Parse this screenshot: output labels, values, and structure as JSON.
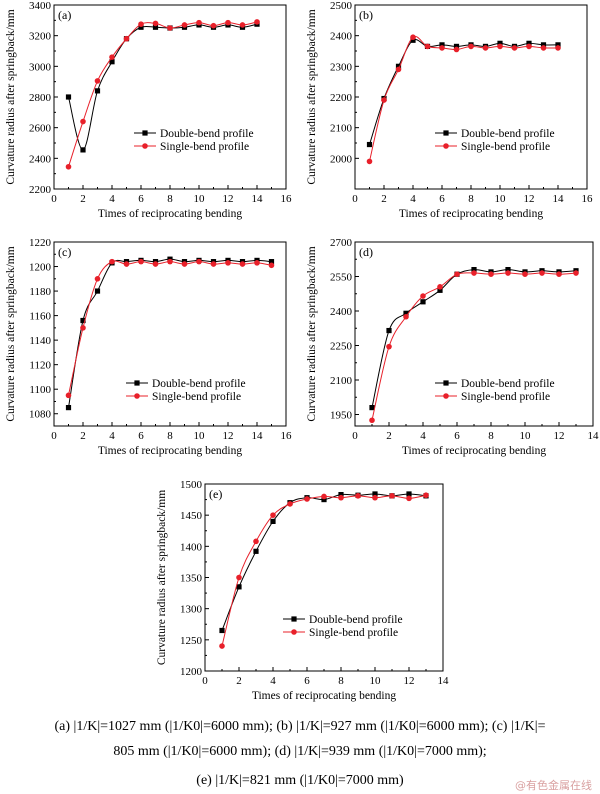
{
  "chart_data": [
    {
      "type": "line",
      "panel_label": "(a)",
      "xlabel": "Times of reciprocating bending",
      "ylabel": "Curvature radius after springback/mm",
      "xlim": [
        0,
        16
      ],
      "ylim": [
        2200,
        3400
      ],
      "xticks": [
        0,
        2,
        4,
        6,
        8,
        10,
        12,
        14,
        16
      ],
      "yticks": [
        2200,
        2400,
        2600,
        2800,
        3000,
        3200,
        3400
      ],
      "legend_position": "middle-right",
      "series": [
        {
          "name": "Double-bend profile",
          "marker": "square",
          "color": "#000000",
          "x": [
            1,
            2,
            3,
            4,
            5,
            6,
            7,
            8,
            9,
            10,
            11,
            12,
            13,
            14
          ],
          "y": [
            2800,
            2455,
            2840,
            3030,
            3180,
            3255,
            3255,
            3250,
            3255,
            3270,
            3255,
            3270,
            3255,
            3275
          ]
        },
        {
          "name": "Single-bend profile",
          "marker": "circle",
          "color": "#e8202a",
          "x": [
            1,
            2,
            3,
            4,
            5,
            6,
            7,
            8,
            9,
            10,
            11,
            12,
            13,
            14
          ],
          "y": [
            2345,
            2640,
            2905,
            3060,
            3180,
            3275,
            3280,
            3250,
            3270,
            3285,
            3265,
            3285,
            3270,
            3290
          ]
        }
      ]
    },
    {
      "type": "line",
      "panel_label": "(b)",
      "xlabel": "Times of reciprocating bending",
      "ylabel": "Curvature radius after springback/mm",
      "xlim": [
        0,
        16
      ],
      "ylim": [
        1900,
        2500
      ],
      "xticks": [
        0,
        2,
        4,
        6,
        8,
        10,
        12,
        14,
        16
      ],
      "yticks": [
        2000,
        2100,
        2200,
        2300,
        2400,
        2500
      ],
      "legend_position": "middle-right",
      "series": [
        {
          "name": "Double-bend profile",
          "marker": "square",
          "color": "#000000",
          "x": [
            1,
            2,
            3,
            4,
            5,
            6,
            7,
            8,
            9,
            10,
            11,
            12,
            13,
            14
          ],
          "y": [
            2045,
            2195,
            2300,
            2385,
            2365,
            2370,
            2365,
            2370,
            2365,
            2375,
            2365,
            2375,
            2370,
            2370
          ]
        },
        {
          "name": "Single-bend profile",
          "marker": "circle",
          "color": "#e8202a",
          "x": [
            1,
            2,
            3,
            4,
            5,
            6,
            7,
            8,
            9,
            10,
            11,
            12,
            13,
            14
          ],
          "y": [
            1990,
            2190,
            2290,
            2395,
            2365,
            2360,
            2355,
            2365,
            2360,
            2365,
            2360,
            2365,
            2360,
            2360
          ]
        }
      ]
    },
    {
      "type": "line",
      "panel_label": "(c)",
      "xlabel": "Times of reciprocating bending",
      "ylabel": "Curvature radius after springback/mm",
      "xlim": [
        0,
        16
      ],
      "ylim": [
        1070,
        1220
      ],
      "xticks": [
        0,
        2,
        4,
        6,
        8,
        10,
        12,
        14,
        16
      ],
      "yticks": [
        1080,
        1100,
        1120,
        1140,
        1160,
        1180,
        1200,
        1220
      ],
      "legend_position": "bottom-right",
      "series": [
        {
          "name": "Double-bend profile",
          "marker": "square",
          "color": "#000000",
          "x": [
            1,
            2,
            3,
            4,
            5,
            6,
            7,
            8,
            9,
            10,
            11,
            12,
            13,
            14,
            15
          ],
          "y": [
            1085,
            1156,
            1180,
            1203,
            1204,
            1205,
            1204,
            1206,
            1204,
            1205,
            1204,
            1205,
            1204,
            1205,
            1204
          ]
        },
        {
          "name": "Single-bend profile",
          "marker": "circle",
          "color": "#e8202a",
          "x": [
            1,
            2,
            3,
            4,
            5,
            6,
            7,
            8,
            9,
            10,
            11,
            12,
            13,
            14,
            15
          ],
          "y": [
            1095,
            1150,
            1190,
            1204,
            1202,
            1204,
            1202,
            1204,
            1202,
            1204,
            1202,
            1203,
            1202,
            1203,
            1201
          ]
        }
      ]
    },
    {
      "type": "line",
      "panel_label": "(d)",
      "xlabel": "Times of reciprocating bending",
      "ylabel": "Curvature radius after springback/mm",
      "xlim": [
        0,
        14
      ],
      "ylim": [
        1900,
        2700
      ],
      "xticks": [
        0,
        2,
        4,
        6,
        8,
        10,
        12,
        14
      ],
      "yticks": [
        1950,
        2100,
        2250,
        2400,
        2550,
        2700
      ],
      "ytick_labels": [
        "1950",
        "2100",
        "2250",
        "2400",
        "2550",
        "2700"
      ],
      "legend_position": "bottom-right",
      "series": [
        {
          "name": "Double-bend profile",
          "marker": "square",
          "color": "#000000",
          "x": [
            1,
            2,
            3,
            4,
            5,
            6,
            7,
            8,
            9,
            10,
            11,
            12,
            13
          ],
          "y": [
            1980,
            2315,
            2390,
            2440,
            2490,
            2560,
            2580,
            2570,
            2580,
            2570,
            2575,
            2570,
            2575
          ]
        },
        {
          "name": "Single-bend profile",
          "marker": "circle",
          "color": "#e8202a",
          "x": [
            1,
            2,
            3,
            4,
            5,
            6,
            7,
            8,
            9,
            10,
            11,
            12,
            13
          ],
          "y": [
            1925,
            2245,
            2375,
            2465,
            2505,
            2560,
            2565,
            2560,
            2565,
            2560,
            2565,
            2560,
            2565
          ]
        }
      ]
    },
    {
      "type": "line",
      "panel_label": "(e)",
      "xlabel": "Times of reciprocating bending",
      "ylabel": "Curvature radius after springback/mm",
      "xlim": [
        0,
        14
      ],
      "ylim": [
        1200,
        1500
      ],
      "xticks": [
        0,
        2,
        4,
        6,
        8,
        10,
        12,
        14
      ],
      "yticks": [
        1200,
        1250,
        1300,
        1350,
        1400,
        1450,
        1500
      ],
      "legend_position": "bottom-right",
      "series": [
        {
          "name": "Double-bend profile",
          "marker": "square",
          "color": "#000000",
          "x": [
            1,
            2,
            3,
            4,
            5,
            6,
            7,
            8,
            9,
            10,
            11,
            12,
            13
          ],
          "y": [
            1265,
            1335,
            1392,
            1440,
            1470,
            1478,
            1475,
            1483,
            1482,
            1484,
            1481,
            1484,
            1481
          ]
        },
        {
          "name": "Single-bend profile",
          "marker": "circle",
          "color": "#e8202a",
          "x": [
            1,
            2,
            3,
            4,
            5,
            6,
            7,
            8,
            9,
            10,
            11,
            12,
            13
          ],
          "y": [
            1240,
            1350,
            1408,
            1450,
            1468,
            1476,
            1480,
            1478,
            1481,
            1478,
            1481,
            1477,
            1482
          ]
        }
      ]
    }
  ],
  "caption": {
    "line1": "(a)  |1/K|=1027 mm (|1/K0|=6000 mm);  (b)  |1/K|=927 mm (|1/K0|=6000 mm);  (c)  |1/K|=",
    "line2": "805 mm (|1/K0|=6000 mm); (d) |1/K|=939 mm (|1/K0|=7000 mm);",
    "line3": "(e) |1/K|=821 mm (|1/K0|=7000 mm)"
  },
  "watermark": "@有色金属在线"
}
